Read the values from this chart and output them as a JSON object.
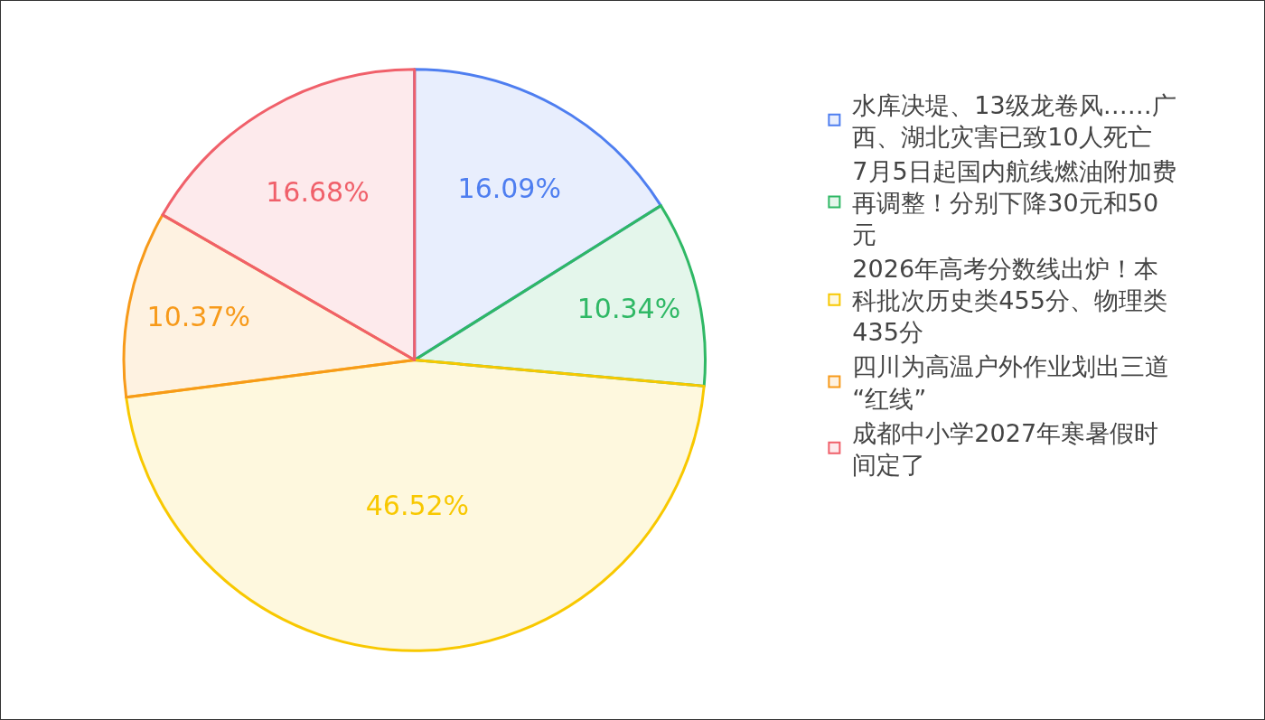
{
  "chart_data": {
    "type": "pie",
    "categories": [
      "水库决堤、13级龙卷风……广西、湖北灾害已致10人死亡",
      "7月5日起国内航线燃油附加费再调整！分别下降30元和50元",
      "2026年高考分数线出炉！本科批次历史类455分、物理类435分",
      "四川为高温户外作业划出三道“红线”",
      "成都中小学2027年寒暑假时间定了"
    ],
    "values": [
      16.09,
      10.34,
      46.52,
      10.37,
      16.68
    ],
    "value_labels": [
      "16.09%",
      "10.34%",
      "46.52%",
      "10.37%",
      "16.68%"
    ],
    "colors": [
      "#4e7ef0",
      "#2fb865",
      "#f8c800",
      "#f79a1a",
      "#f0606a"
    ],
    "legend": "right"
  }
}
